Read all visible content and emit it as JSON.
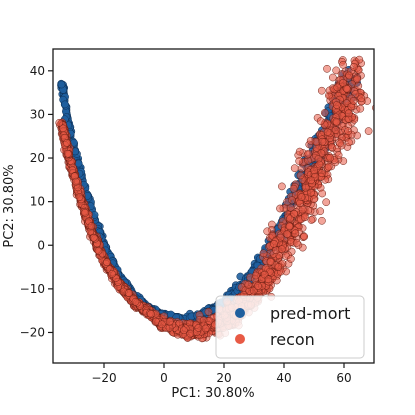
{
  "chart_data": {
    "type": "scatter",
    "xlabel": "PC1: 30.80%",
    "ylabel": "PC2: 30.80%",
    "xlim": [
      -37,
      70
    ],
    "ylim": [
      -27,
      45
    ],
    "xticks": [
      -20,
      0,
      20,
      40,
      60
    ],
    "yticks": [
      -20,
      -10,
      0,
      10,
      20,
      30,
      40
    ],
    "xtick_labels": [
      "−20",
      "0",
      "20",
      "40",
      "60"
    ],
    "ytick_labels": [
      "−20",
      "−10",
      "0",
      "10",
      "20",
      "30",
      "40"
    ],
    "grid": false,
    "legend_position": "lower-right",
    "series": [
      {
        "name": "pred-mort",
        "color": "#1f5f9e",
        "curve_points": [
          [
            -34,
            37
          ],
          [
            -32,
            28
          ],
          [
            -28,
            17
          ],
          [
            -24,
            8
          ],
          [
            -20,
            0
          ],
          [
            -15,
            -7
          ],
          [
            -10,
            -11.5
          ],
          [
            -5,
            -14.5
          ],
          [
            0,
            -16
          ],
          [
            6,
            -17
          ],
          [
            12,
            -16.5
          ],
          [
            18,
            -14
          ],
          [
            24,
            -11
          ],
          [
            30,
            -6
          ],
          [
            35,
            -1
          ],
          [
            40,
            5
          ],
          [
            45,
            13
          ],
          [
            50,
            20
          ],
          [
            55,
            27
          ],
          [
            60,
            35
          ],
          [
            62,
            39
          ]
        ]
      },
      {
        "name": "recon",
        "color": "#e85a45",
        "curve_points": [
          [
            -34,
            28
          ],
          [
            -32,
            21
          ],
          [
            -28,
            11
          ],
          [
            -24,
            3
          ],
          [
            -20,
            -3.5
          ],
          [
            -15,
            -9
          ],
          [
            -10,
            -13
          ],
          [
            -5,
            -15.5
          ],
          [
            0,
            -18
          ],
          [
            6,
            -19.5
          ],
          [
            12,
            -19.5
          ],
          [
            18,
            -18
          ],
          [
            24,
            -15.5
          ],
          [
            30,
            -11
          ],
          [
            35,
            -6
          ],
          [
            40,
            1
          ],
          [
            45,
            8
          ],
          [
            50,
            16
          ],
          [
            55,
            24
          ],
          [
            60,
            32
          ],
          [
            63,
            40
          ]
        ]
      }
    ]
  }
}
